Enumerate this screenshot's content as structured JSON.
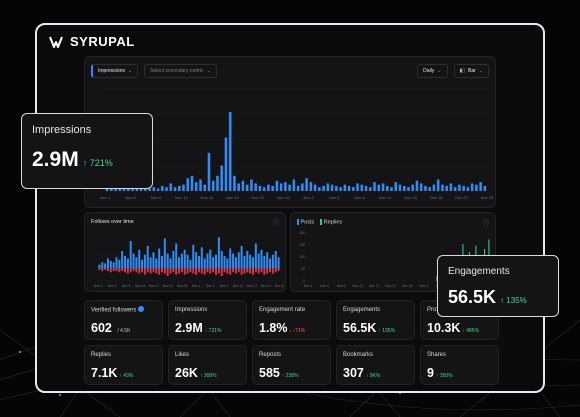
{
  "brand": {
    "name": "SYRUPAL",
    "accent": "#2f8ef5",
    "positive": "#41d98a",
    "negative": "#ff5a5a"
  },
  "toolbar": {
    "primary_metric": "Impressions",
    "secondary_metric_placeholder": "Select secondary metric",
    "interval": "Daily",
    "chart_type": "Bar",
    "chart_type_icon": "bar-chart-icon"
  },
  "impressions_overlay": {
    "label": "Impressions",
    "value": "2.9M",
    "change": "↑ 721%"
  },
  "engagements_overlay": {
    "label": "Engagements",
    "value": "56.5K",
    "change": "↑ 135%"
  },
  "follows_panel": {
    "title": "Follows over time",
    "info_icon": "info-icon"
  },
  "posts_panel": {
    "legend": [
      "Posts",
      "Replies"
    ],
    "legend_colors": [
      "#2f8ef5",
      "#2fd27d"
    ],
    "info_icon": "info-icon"
  },
  "stats_row1": [
    {
      "label": "Verified followers",
      "value": "602",
      "suffix": "/ 4.5K",
      "change": "",
      "verified": true
    },
    {
      "label": "Impressions",
      "value": "2.9M",
      "change": "↑ 721%"
    },
    {
      "label": "Engagement rate",
      "value": "1.8%",
      "change": "↓ -71%",
      "negative": true
    },
    {
      "label": "Engagements",
      "value": "56.5K",
      "change": "↑ 135%"
    },
    {
      "label": "Profile visits",
      "value": "10.3K",
      "change": "↑ 485%"
    }
  ],
  "stats_row2": [
    {
      "label": "Replies",
      "value": "7.1K",
      "change": "↑ 43%"
    },
    {
      "label": "Likes",
      "value": "26K",
      "change": "↑ 300%"
    },
    {
      "label": "Reposts",
      "value": "585",
      "change": "↑ 238%"
    },
    {
      "label": "Bookmarks",
      "value": "307",
      "change": "↑ 9K%"
    },
    {
      "label": "Shares",
      "value": "9",
      "change": "↑ 350%"
    }
  ],
  "chart_data": [
    {
      "type": "bar",
      "series": [
        {
          "name": "Impressions",
          "color": "#2f8ef5"
        }
      ],
      "x_ticks": [
        "Nov 1",
        "Nov 5",
        "Nov 9",
        "Nov 13",
        "Nov 16",
        "Nov 19",
        "Nov 22",
        "Nov 26",
        "Dec 2",
        "Dec 5",
        "Dec 8",
        "Dec 11",
        "Dec 15",
        "Dec 18",
        "Dec 22",
        "Dec 26"
      ],
      "values": [
        2,
        3,
        2,
        4,
        3,
        2,
        5,
        3,
        4,
        3,
        2,
        3,
        2,
        4,
        3,
        6,
        3,
        4,
        5,
        10,
        12,
        7,
        9,
        5,
        30,
        8,
        12,
        20,
        42,
        62,
        12,
        6,
        8,
        5,
        9,
        6,
        4,
        3,
        5,
        4,
        8,
        6,
        7,
        5,
        9,
        4,
        6,
        10,
        7,
        5,
        3,
        4,
        6,
        5,
        4,
        3,
        5,
        4,
        3,
        6,
        5,
        4,
        3,
        7,
        5,
        6,
        4,
        3,
        7,
        5,
        4,
        3,
        5,
        8,
        6,
        4,
        3,
        5,
        9,
        5,
        4,
        6,
        3,
        5,
        4,
        3,
        6,
        5,
        7,
        4
      ],
      "ylim": [
        0,
        80
      ]
    },
    {
      "type": "bar",
      "series": [
        {
          "name": "Follows",
          "color": "#2f8ef5"
        },
        {
          "name": "Unfollows",
          "color": "#e0303a"
        }
      ],
      "x_ticks": [
        "Nov 1",
        "Nov 5",
        "Nov 9",
        "Nov 13",
        "Nov 17",
        "Nov 21",
        "Nov 25",
        "Dec 1",
        "Dec 5",
        "Dec 9",
        "Dec 13",
        "Dec 17",
        "Dec 21",
        "Dec 25"
      ],
      "follows": [
        3,
        5,
        4,
        8,
        6,
        5,
        9,
        7,
        14,
        10,
        8,
        22,
        12,
        9,
        15,
        7,
        11,
        18,
        9,
        13,
        8,
        16,
        10,
        24,
        12,
        8,
        14,
        20,
        9,
        12,
        15,
        11,
        7,
        19,
        13,
        10,
        17,
        8,
        12,
        15,
        9,
        11,
        25,
        14,
        10,
        8,
        16,
        12,
        9,
        13,
        18,
        10,
        14,
        11,
        9,
        20,
        12,
        15,
        10,
        13,
        8,
        11,
        14,
        9
      ],
      "unfollows": [
        1,
        2,
        1,
        2,
        3,
        2,
        2,
        3,
        2,
        3,
        4,
        3,
        2,
        3,
        4,
        3,
        5,
        3,
        4,
        3,
        4,
        5,
        3,
        4,
        6,
        4,
        3,
        5,
        4,
        3,
        5,
        4,
        3,
        4,
        5,
        3,
        4,
        5,
        3,
        4,
        3,
        5,
        4,
        6,
        3,
        4,
        5,
        3,
        4,
        3,
        5,
        4,
        3,
        4,
        5,
        3,
        4,
        3,
        5,
        4,
        3,
        4,
        3,
        2
      ],
      "ylim": [
        -10,
        30
      ]
    },
    {
      "type": "bar",
      "series": [
        {
          "name": "Posts",
          "color": "#2f8ef5"
        },
        {
          "name": "Replies",
          "color": "#2fd27d"
        }
      ],
      "y_ticks": [
        "300",
        "200",
        "100",
        "50",
        "0"
      ],
      "x_ticks": [
        "Nov 1",
        "Nov 5",
        "Nov 9",
        "Nov 13",
        "Nov 17",
        "Nov 21",
        "Nov 25",
        "Dec 1",
        "Dec 5",
        "Dec 9",
        "Dec 13",
        "Dec 17"
      ],
      "replies": [
        0,
        0,
        0,
        0,
        0,
        0,
        0,
        0,
        0,
        0,
        0,
        0,
        0,
        0,
        0,
        0,
        0,
        0,
        0,
        0,
        0,
        0,
        0,
        0,
        0,
        0,
        0,
        0,
        0,
        0,
        0,
        0,
        0,
        0,
        0,
        0,
        0,
        0,
        0,
        0,
        0,
        0,
        0,
        0,
        0,
        0,
        0,
        0,
        0,
        0,
        0,
        0,
        0,
        0,
        0,
        0,
        0,
        0,
        0,
        30,
        80,
        45,
        20,
        90,
        60,
        30,
        150,
        120,
        40,
        110,
        70,
        230,
        130,
        60,
        180,
        90,
        40,
        220,
        150,
        70,
        140,
        200,
        100,
        260
      ],
      "ylim": [
        0,
        300
      ]
    }
  ]
}
